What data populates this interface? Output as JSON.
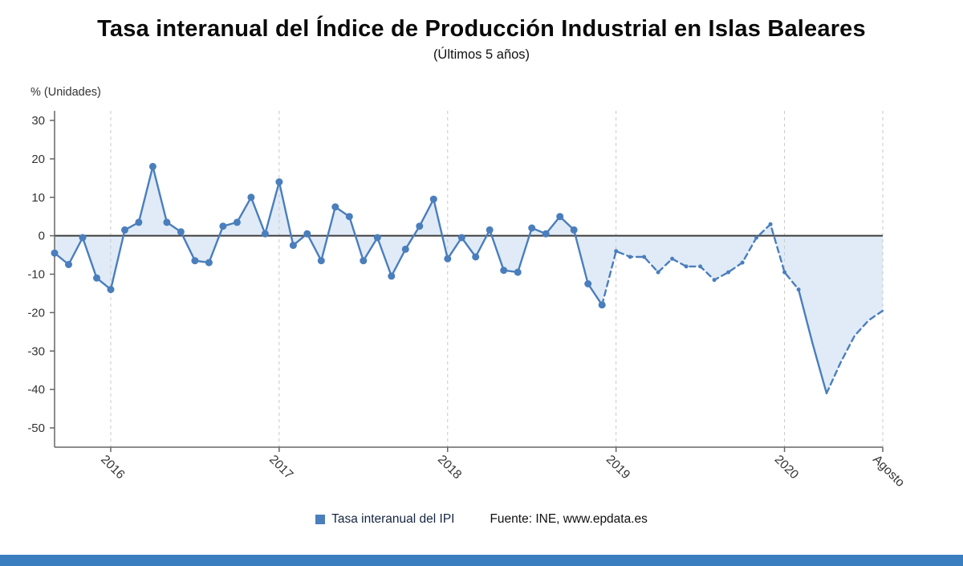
{
  "title": "Tasa interanual del Índice de Producción Industrial en Islas Baleares",
  "subtitle": "(Últimos 5 años)",
  "y_axis_unit": "% (Unidades)",
  "legend": {
    "series_label": "Tasa interanual del IPI",
    "source": "Fuente: INE, www.epdata.es"
  },
  "colors": {
    "line": "#4a7ebc",
    "fill": "#dbe8f6",
    "zero_line": "#3d3d3d",
    "grid": "#c9c9c9",
    "axis": "#666666",
    "tick_text": "#333333",
    "accent_bar": "#3b7ec0"
  },
  "chart_data": {
    "type": "line",
    "title": "Tasa interanual del Índice de Producción Industrial en Islas Baleares",
    "subtitle": "(Últimos 5 años)",
    "ylabel": "% (Unidades)",
    "series_name": "Tasa interanual del IPI",
    "ylim": [
      -55,
      33
    ],
    "grid": "vertical-dashed",
    "legend_position": "bottom",
    "y_ticks": [
      30,
      20,
      10,
      0,
      -10,
      -20,
      -30,
      -40,
      -50
    ],
    "x_ticks": [
      {
        "index": 4,
        "label": "2016"
      },
      {
        "index": 16,
        "label": "2017"
      },
      {
        "index": 28,
        "label": "2018"
      },
      {
        "index": 40,
        "label": "2019"
      },
      {
        "index": 52,
        "label": "2020"
      },
      {
        "index": 59,
        "label": "Agosto"
      }
    ],
    "values": [
      -4.5,
      -7.5,
      -0.5,
      -11,
      -14,
      1.5,
      3.5,
      18,
      3.5,
      1,
      -6.5,
      -7,
      2.5,
      3.5,
      10,
      0.5,
      14,
      -2.5,
      0.5,
      -6.5,
      7.5,
      5,
      -6.5,
      -0.5,
      -10.5,
      -3.5,
      2.5,
      9.5,
      -6,
      -0.5,
      -5.5,
      1.5,
      -9,
      -9.5,
      2,
      0.5,
      5,
      1.5,
      -12.5,
      -18,
      -4,
      -5.5,
      -5.5,
      -9.5,
      -6,
      -8,
      -8,
      -11.5,
      -9.5,
      -7,
      -0.5,
      3,
      -9.5,
      -14,
      -28,
      -41,
      -33,
      -26,
      -22,
      -19.5
    ],
    "line_segments": [
      {
        "from": 0,
        "to": 39,
        "dash": false
      },
      {
        "from": 39,
        "to": 53,
        "dash": true
      },
      {
        "from": 53,
        "to": 55,
        "dash": false
      },
      {
        "from": 55,
        "to": 59,
        "dash": true
      }
    ],
    "marker_groups": [
      {
        "from": 0,
        "to": 39,
        "r": 4.5
      },
      {
        "from": 40,
        "to": 53,
        "r": 2.5
      }
    ]
  }
}
